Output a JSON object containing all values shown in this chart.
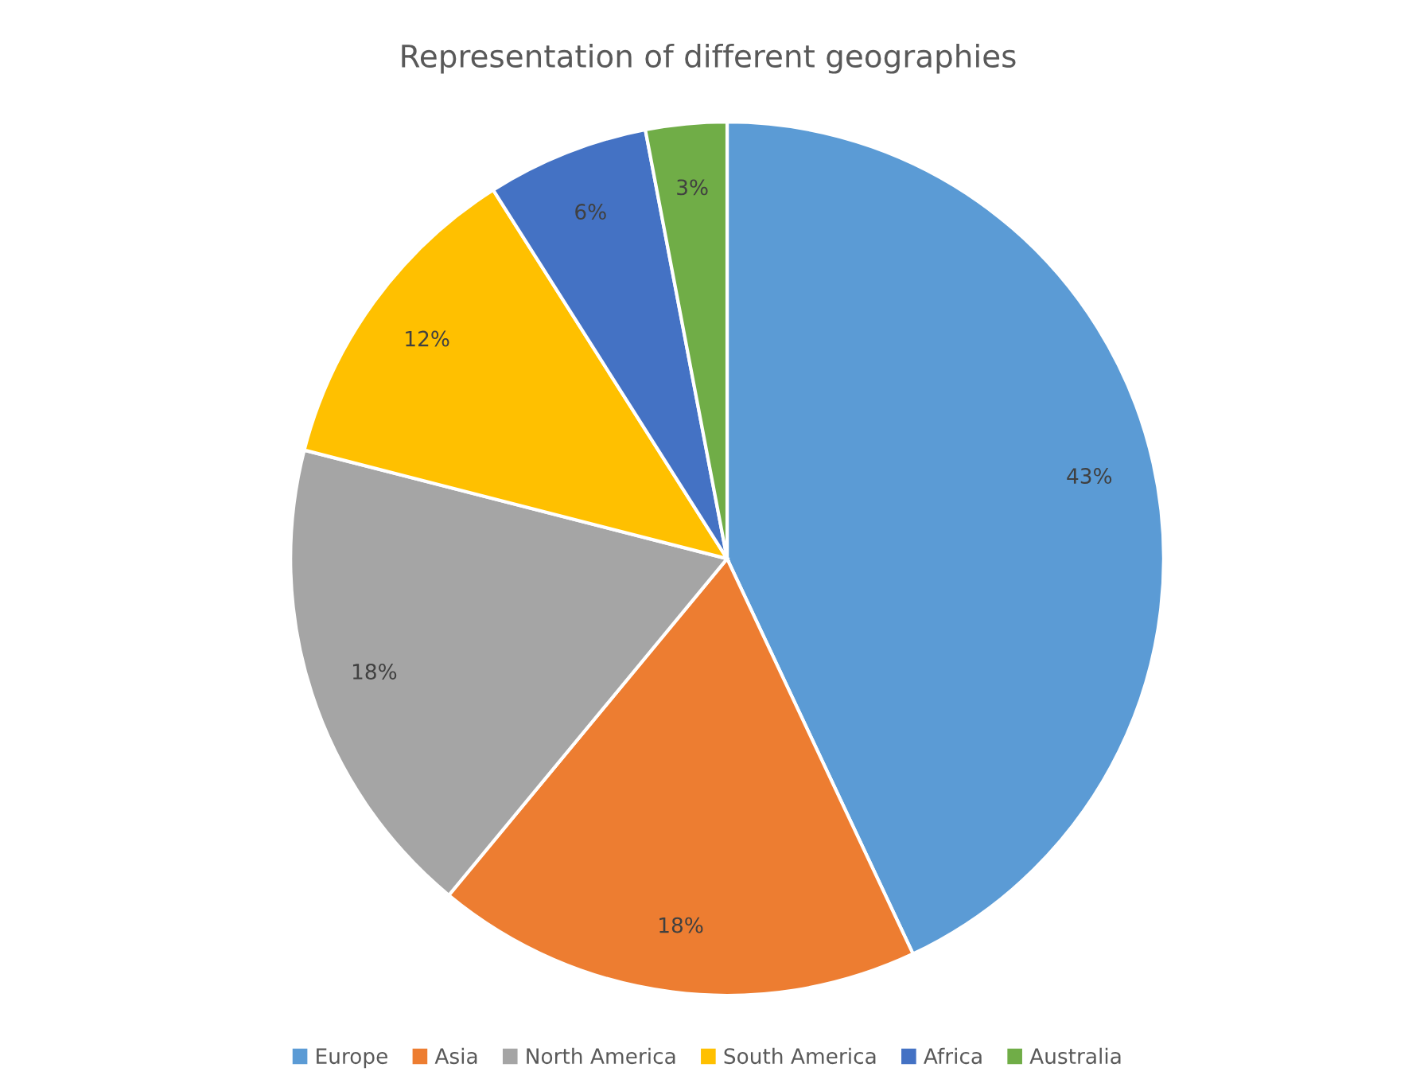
{
  "chart_data": {
    "type": "pie",
    "title": "Representation of different geographies",
    "categories": [
      "Europe",
      "Asia",
      "North America",
      "South America",
      "Africa",
      "Australia"
    ],
    "values": [
      43,
      18,
      18,
      12,
      6,
      3
    ],
    "colors": [
      "#5b9bd5",
      "#ed7d31",
      "#a5a5a5",
      "#ffc000",
      "#4472c4",
      "#70ad47"
    ],
    "value_labels": [
      "43%",
      "18%",
      "18%",
      "12%",
      "6%",
      "3%"
    ],
    "legend": "bottom"
  }
}
